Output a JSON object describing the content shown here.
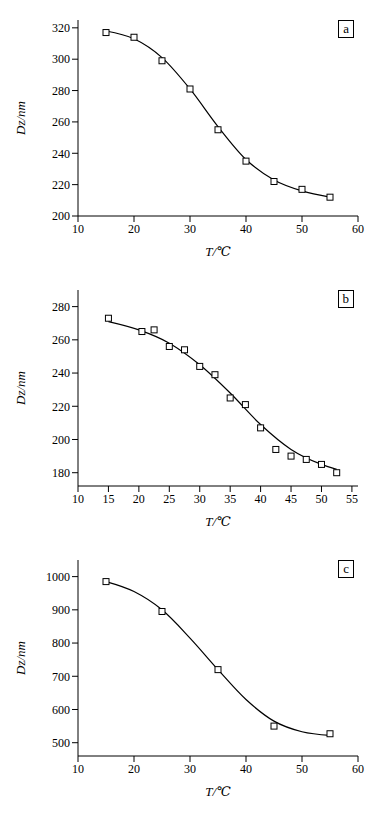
{
  "chart_data": [
    {
      "type": "line",
      "annotation": "a",
      "x_label": "T/℃",
      "y_label": "Dz/nm",
      "xlim": [
        10,
        60
      ],
      "xticks": [
        10,
        20,
        30,
        40,
        50,
        60
      ],
      "ylim": [
        200,
        325
      ],
      "yticks": [
        200,
        220,
        240,
        260,
        280,
        300,
        320
      ],
      "series": [
        {
          "type": "scatter",
          "marker": "square",
          "color": "#000000",
          "x": [
            15,
            20,
            25,
            30,
            35,
            40,
            45,
            50,
            55
          ],
          "values": [
            317,
            314,
            299,
            281,
            255,
            235,
            222,
            217,
            212
          ]
        },
        {
          "type": "line",
          "line_style": "solid",
          "color": "#000000",
          "x": [
            15,
            20,
            25,
            30,
            35,
            40,
            45,
            50,
            55
          ],
          "values": [
            318,
            313,
            301,
            281,
            257,
            236,
            223,
            216,
            212
          ]
        }
      ]
    },
    {
      "type": "line",
      "annotation": "b",
      "x_label": "T/℃",
      "y_label": "Dz/nm",
      "xlim": [
        10,
        56
      ],
      "xticks": [
        10,
        15,
        20,
        25,
        30,
        35,
        40,
        45,
        50,
        55
      ],
      "ylim": [
        172,
        290
      ],
      "yticks": [
        180,
        200,
        220,
        240,
        260,
        280
      ],
      "series": [
        {
          "type": "scatter",
          "marker": "square",
          "color": "#000000",
          "x": [
            15,
            20.5,
            22.5,
            25,
            27.5,
            30,
            32.5,
            35,
            37.5,
            40,
            42.5,
            45,
            47.5,
            50,
            52.5
          ],
          "values": [
            273,
            265,
            266,
            256,
            254,
            244,
            239,
            225,
            221,
            207,
            194,
            190,
            188,
            185,
            180
          ]
        },
        {
          "type": "line",
          "line_style": "solid",
          "color": "#000000",
          "x": [
            15,
            20,
            25,
            30,
            35,
            40,
            45,
            50,
            52.5
          ],
          "values": [
            271,
            266,
            258,
            245,
            228,
            209,
            194,
            185,
            182
          ]
        }
      ]
    },
    {
      "type": "line",
      "annotation": "c",
      "x_label": "T/℃",
      "y_label": "Dz/nm",
      "xlim": [
        10,
        60
      ],
      "xticks": [
        10,
        20,
        30,
        40,
        50,
        60
      ],
      "ylim": [
        460,
        1050
      ],
      "yticks": [
        500,
        600,
        700,
        800,
        900,
        1000
      ],
      "series": [
        {
          "type": "scatter",
          "marker": "square",
          "color": "#000000",
          "x": [
            15,
            25,
            35,
            45,
            55
          ],
          "values": [
            985,
            895,
            720,
            550,
            527
          ]
        },
        {
          "type": "line",
          "line_style": "solid",
          "color": "#000000",
          "x": [
            15,
            20,
            25,
            30,
            35,
            40,
            45,
            50,
            55
          ],
          "values": [
            985,
            955,
            900,
            815,
            720,
            630,
            565,
            533,
            522
          ]
        }
      ]
    }
  ]
}
